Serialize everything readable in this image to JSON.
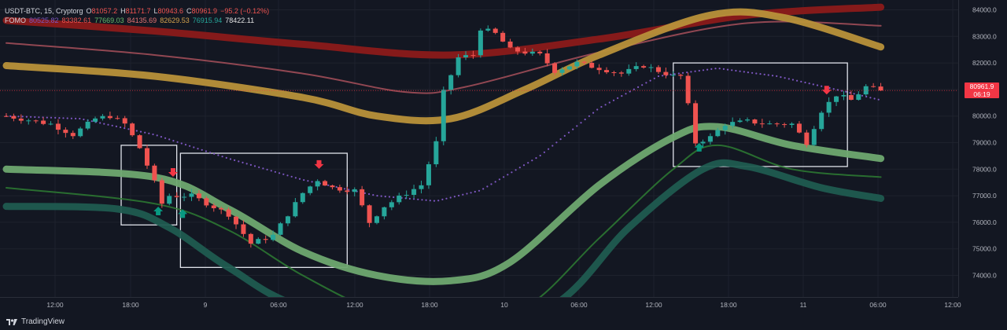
{
  "legend": {
    "symbol": "USDT-BTC, 15, Cryptorg",
    "o_key": "O",
    "o_val": "81057.2",
    "h_key": "H",
    "h_val": "81171.7",
    "l_key": "L",
    "l_val": "80943.6",
    "c_key": "C",
    "c_val": "80961.9",
    "change": "−95.2 (−0.12%)",
    "indicator": "FOMO",
    "fomo_values": [
      "80525.82",
      "83382.61",
      "77669.03",
      "84135.69",
      "82629.53",
      "76915.94",
      "78422.11"
    ]
  },
  "price_tag": {
    "price": "80961.9",
    "countdown": "06:19"
  },
  "brand": "TradingView",
  "colors": {
    "background": "#131722",
    "up": "#26a69a",
    "down": "#ef5350",
    "fomo_purple": "#7e57c2",
    "red_band": "#8b1a1a",
    "gold_band": "#b8913a",
    "green_band": "#6ea870",
    "teal_band": "#1f5b50"
  },
  "chart_data": {
    "type": "line",
    "title": "",
    "y_ticks": [
      "84000.0",
      "83000.0",
      "82000.0",
      "81000.0",
      "80000.0",
      "79000.0",
      "78000.0",
      "77000.0",
      "76000.0",
      "75000.0",
      "74000.0"
    ],
    "x_ticks": [
      "12:00",
      "18:00",
      "9",
      "06:00",
      "12:00",
      "18:00",
      "10",
      "06:00",
      "12:00",
      "18:00",
      "11",
      "06:00",
      "12:00"
    ],
    "ylim": [
      73300,
      84200
    ],
    "current_price": 80961.9,
    "price_keypoints": [
      [
        0,
        80000
      ],
      [
        6,
        79700
      ],
      [
        9,
        79300
      ],
      [
        12,
        79900
      ],
      [
        14,
        80000
      ],
      [
        16,
        79700
      ],
      [
        18,
        78800
      ],
      [
        20,
        77500
      ],
      [
        21,
        76700
      ],
      [
        22,
        77000
      ],
      [
        25,
        77000
      ],
      [
        30,
        76300
      ],
      [
        33,
        75200
      ],
      [
        36,
        75500
      ],
      [
        40,
        77100
      ],
      [
        42,
        77600
      ],
      [
        44,
        77300
      ],
      [
        47,
        77200
      ],
      [
        49,
        76000
      ],
      [
        51,
        76600
      ],
      [
        54,
        77100
      ],
      [
        56,
        77400
      ],
      [
        58,
        79000
      ],
      [
        59,
        80900
      ],
      [
        61,
        82200
      ],
      [
        63,
        82300
      ],
      [
        64,
        83300
      ],
      [
        66,
        83100
      ],
      [
        68,
        82500
      ],
      [
        72,
        82300
      ],
      [
        74,
        81700
      ],
      [
        77,
        82000
      ],
      [
        80,
        81800
      ],
      [
        83,
        81600
      ],
      [
        86,
        81900
      ],
      [
        90,
        81500
      ],
      [
        91,
        81500
      ],
      [
        92,
        80400
      ],
      [
        93,
        79000
      ],
      [
        95,
        79200
      ],
      [
        97,
        79700
      ],
      [
        100,
        79800
      ],
      [
        103,
        79700
      ],
      [
        106,
        79700
      ],
      [
        108,
        79000
      ],
      [
        110,
        80200
      ],
      [
        112,
        80800
      ],
      [
        114,
        80600
      ],
      [
        116,
        81100
      ],
      [
        118,
        80962
      ]
    ],
    "series": [
      {
        "name": "",
        "color": "#7e57c2",
        "style": "dotted",
        "points": [
          [
            0,
            80000
          ],
          [
            10,
            79900
          ],
          [
            20,
            79300
          ],
          [
            30,
            78400
          ],
          [
            40,
            77600
          ],
          [
            50,
            77000
          ],
          [
            58,
            76800
          ],
          [
            64,
            77200
          ],
          [
            72,
            78500
          ],
          [
            80,
            80300
          ],
          [
            88,
            81500
          ],
          [
            96,
            81800
          ],
          [
            104,
            81500
          ],
          [
            112,
            81000
          ],
          [
            118,
            80600
          ]
        ]
      },
      {
        "name": "",
        "color": "#8b1a1a",
        "style": "band",
        "points": [
          [
            0,
            83600
          ],
          [
            20,
            83200
          ],
          [
            40,
            82700
          ],
          [
            60,
            82300
          ],
          [
            80,
            82900
          ],
          [
            100,
            83800
          ],
          [
            118,
            84100
          ]
        ]
      },
      {
        "name": "",
        "color": "#a8505a",
        "style": "thin",
        "points": [
          [
            0,
            82750
          ],
          [
            20,
            82300
          ],
          [
            40,
            81600
          ],
          [
            54,
            80900
          ],
          [
            62,
            81100
          ],
          [
            80,
            82400
          ],
          [
            100,
            83500
          ],
          [
            118,
            83400
          ]
        ]
      },
      {
        "name": "",
        "color": "#b8913a",
        "style": "band",
        "points": [
          [
            0,
            81900
          ],
          [
            20,
            81500
          ],
          [
            40,
            80700
          ],
          [
            50,
            80000
          ],
          [
            60,
            79900
          ],
          [
            70,
            81000
          ],
          [
            80,
            82300
          ],
          [
            95,
            83800
          ],
          [
            105,
            83700
          ],
          [
            118,
            82600
          ]
        ]
      },
      {
        "name": "",
        "color": "#6ea870",
        "style": "band",
        "points": [
          [
            0,
            78000
          ],
          [
            20,
            77700
          ],
          [
            30,
            76500
          ],
          [
            40,
            74900
          ],
          [
            50,
            74000
          ],
          [
            60,
            73800
          ],
          [
            68,
            74500
          ],
          [
            80,
            77400
          ],
          [
            90,
            79200
          ],
          [
            96,
            79600
          ],
          [
            106,
            78900
          ],
          [
            118,
            78400
          ]
        ]
      },
      {
        "name": "",
        "color": "#2e7d32",
        "style": "thin",
        "points": [
          [
            0,
            77300
          ],
          [
            20,
            76700
          ],
          [
            30,
            75700
          ],
          [
            40,
            74000
          ],
          [
            50,
            72700
          ],
          [
            60,
            72500
          ],
          [
            70,
            72800
          ],
          [
            80,
            75400
          ],
          [
            90,
            78000
          ],
          [
            96,
            78900
          ],
          [
            106,
            78000
          ],
          [
            118,
            77700
          ]
        ]
      },
      {
        "name": "",
        "color": "#1f5b50",
        "style": "band",
        "points": [
          [
            0,
            76600
          ],
          [
            15,
            76500
          ],
          [
            22,
            75800
          ],
          [
            30,
            74300
          ],
          [
            40,
            72800
          ],
          [
            60,
            71700
          ],
          [
            74,
            72900
          ],
          [
            84,
            75800
          ],
          [
            94,
            78000
          ],
          [
            100,
            78100
          ],
          [
            110,
            77300
          ],
          [
            118,
            76900
          ]
        ]
      }
    ],
    "boxes": [
      {
        "x": [
          15.5,
          23
        ],
        "y": [
          75900,
          78900
        ]
      },
      {
        "x": [
          23.5,
          46
        ],
        "y": [
          74300,
          78600
        ]
      },
      {
        "x": [
          90,
          113.5
        ],
        "y": [
          78100,
          82000
        ]
      }
    ],
    "signals": [
      {
        "dir": "down",
        "x": 22.5,
        "y": 77800
      },
      {
        "dir": "up",
        "x": 20.5,
        "y": 76500
      },
      {
        "dir": "up",
        "x": 23.8,
        "y": 76400
      },
      {
        "dir": "down",
        "x": 42.2,
        "y": 78100
      },
      {
        "dir": "up",
        "x": 93.5,
        "y": 78900
      },
      {
        "dir": "down",
        "x": 110.7,
        "y": 80900
      }
    ]
  }
}
